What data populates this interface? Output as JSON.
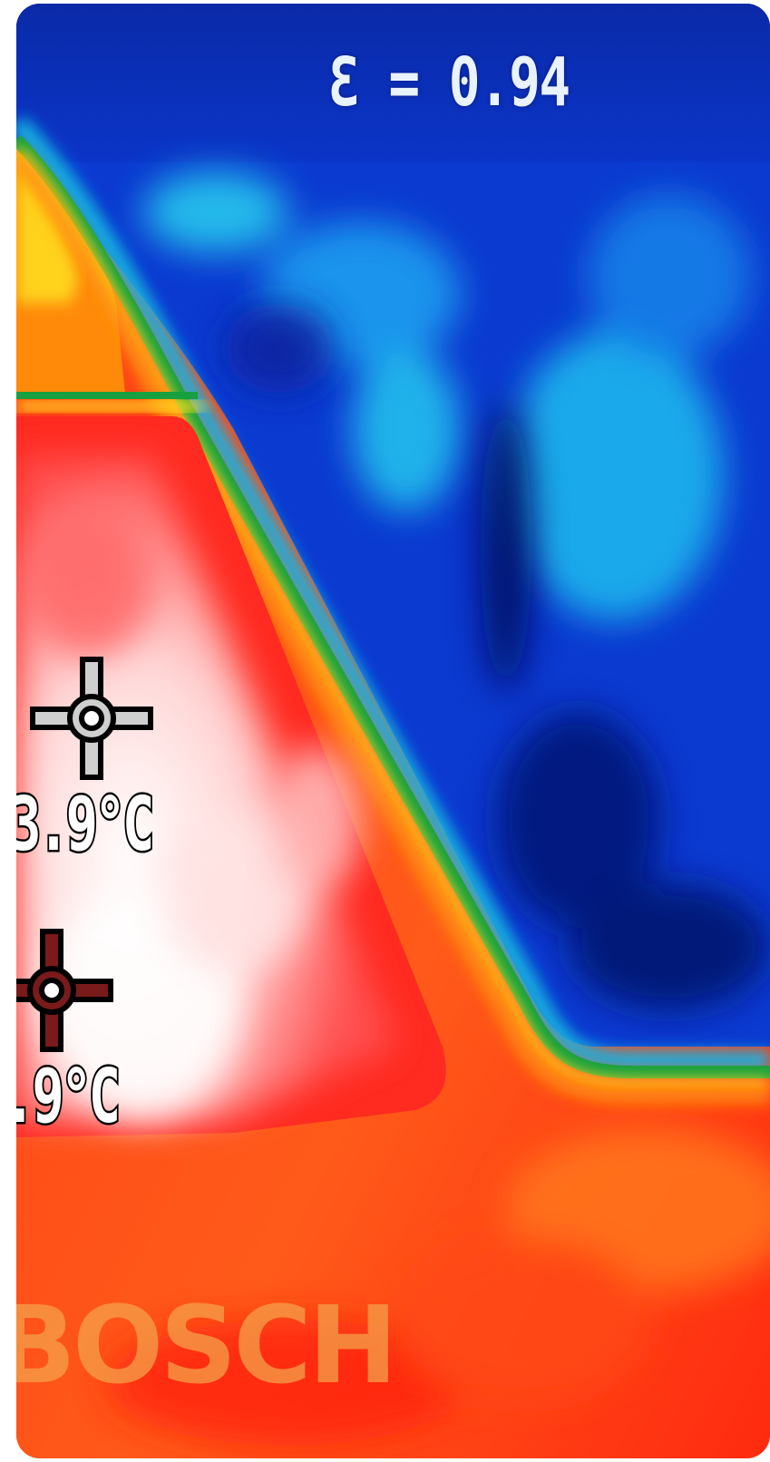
{
  "overlay": {
    "emissivity": "Ɛ = 0.94",
    "spot_1_temp": "3.9°C",
    "spot_2_temp": ".9°C",
    "brand": "BOSCH"
  },
  "icons": {
    "spot_1": "crosshair-icon",
    "spot_2": "crosshair-icon"
  },
  "colors": {
    "cold": "#0a1fa8",
    "cool": "#1ec8f0",
    "transition": "#1aa84a",
    "warm": "#ff2a10",
    "hot": "#fff4f4"
  }
}
